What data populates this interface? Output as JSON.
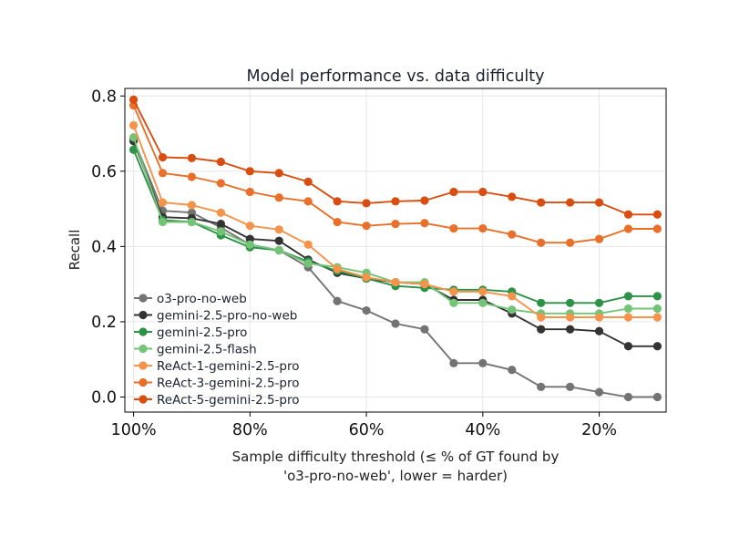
{
  "chart_data": {
    "type": "line",
    "title": "Model performance vs. data difficulty",
    "xlabel_line1": "Sample difficulty threshold (≤ % of GT found by",
    "xlabel_line2": "'o3-pro-no-web', lower = harder)",
    "ylabel": "Recall",
    "xlim": [
      101.5,
      8.5
    ],
    "ylim": [
      -0.04,
      0.82
    ],
    "x_ticks": [
      100,
      80,
      60,
      40,
      20
    ],
    "x_tick_labels": [
      "100%",
      "80%",
      "60%",
      "40%",
      "20%"
    ],
    "y_ticks": [
      0.0,
      0.2,
      0.4,
      0.6,
      0.8
    ],
    "y_tick_labels": [
      "0.0",
      "0.2",
      "0.4",
      "0.6",
      "0.8"
    ],
    "grid": true,
    "legend_position": "lower-left",
    "x": [
      100,
      95,
      90,
      85,
      80,
      75,
      70,
      65,
      60,
      55,
      50,
      45,
      40,
      35,
      30,
      25,
      20,
      15,
      10
    ],
    "series": [
      {
        "name": "o3-pro-no-web",
        "color": "#737373",
        "values": [
          0.685,
          0.495,
          0.49,
          0.45,
          0.405,
          0.39,
          0.345,
          0.255,
          0.23,
          0.195,
          0.18,
          0.09,
          0.09,
          0.072,
          0.027,
          0.027,
          0.013,
          0.0,
          0.0
        ]
      },
      {
        "name": "gemini-2.5-pro-no-web",
        "color": "#333333",
        "values": [
          0.68,
          0.478,
          0.475,
          0.46,
          0.42,
          0.415,
          0.365,
          0.33,
          0.315,
          0.305,
          0.3,
          0.258,
          0.258,
          0.222,
          0.18,
          0.18,
          0.175,
          0.135,
          0.135
        ]
      },
      {
        "name": "gemini-2.5-pro",
        "color": "#2d9148",
        "values": [
          0.657,
          0.47,
          0.465,
          0.43,
          0.398,
          0.39,
          0.36,
          0.335,
          0.315,
          0.295,
          0.29,
          0.285,
          0.285,
          0.28,
          0.25,
          0.25,
          0.25,
          0.268,
          0.268
        ]
      },
      {
        "name": "gemini-2.5-flash",
        "color": "#73c476",
        "values": [
          0.69,
          0.465,
          0.465,
          0.44,
          0.405,
          0.39,
          0.355,
          0.345,
          0.33,
          0.305,
          0.305,
          0.25,
          0.25,
          0.232,
          0.222,
          0.222,
          0.222,
          0.235,
          0.235
        ]
      },
      {
        "name": "ReAct-1-gemini-2.5-pro",
        "color": "#f5934a",
        "values": [
          0.722,
          0.517,
          0.51,
          0.49,
          0.455,
          0.445,
          0.405,
          0.34,
          0.318,
          0.305,
          0.3,
          0.28,
          0.28,
          0.268,
          0.212,
          0.212,
          0.212,
          0.212,
          0.212
        ]
      },
      {
        "name": "ReAct-3-gemini-2.5-pro",
        "color": "#e8702a",
        "values": [
          0.775,
          0.595,
          0.585,
          0.568,
          0.545,
          0.53,
          0.52,
          0.465,
          0.455,
          0.46,
          0.462,
          0.448,
          0.448,
          0.432,
          0.41,
          0.41,
          0.42,
          0.447,
          0.447
        ]
      },
      {
        "name": "ReAct-5-gemini-2.5-pro",
        "color": "#d94e10",
        "values": [
          0.79,
          0.637,
          0.635,
          0.625,
          0.6,
          0.595,
          0.572,
          0.52,
          0.515,
          0.52,
          0.522,
          0.545,
          0.545,
          0.532,
          0.517,
          0.517,
          0.517,
          0.485,
          0.485
        ]
      }
    ]
  }
}
